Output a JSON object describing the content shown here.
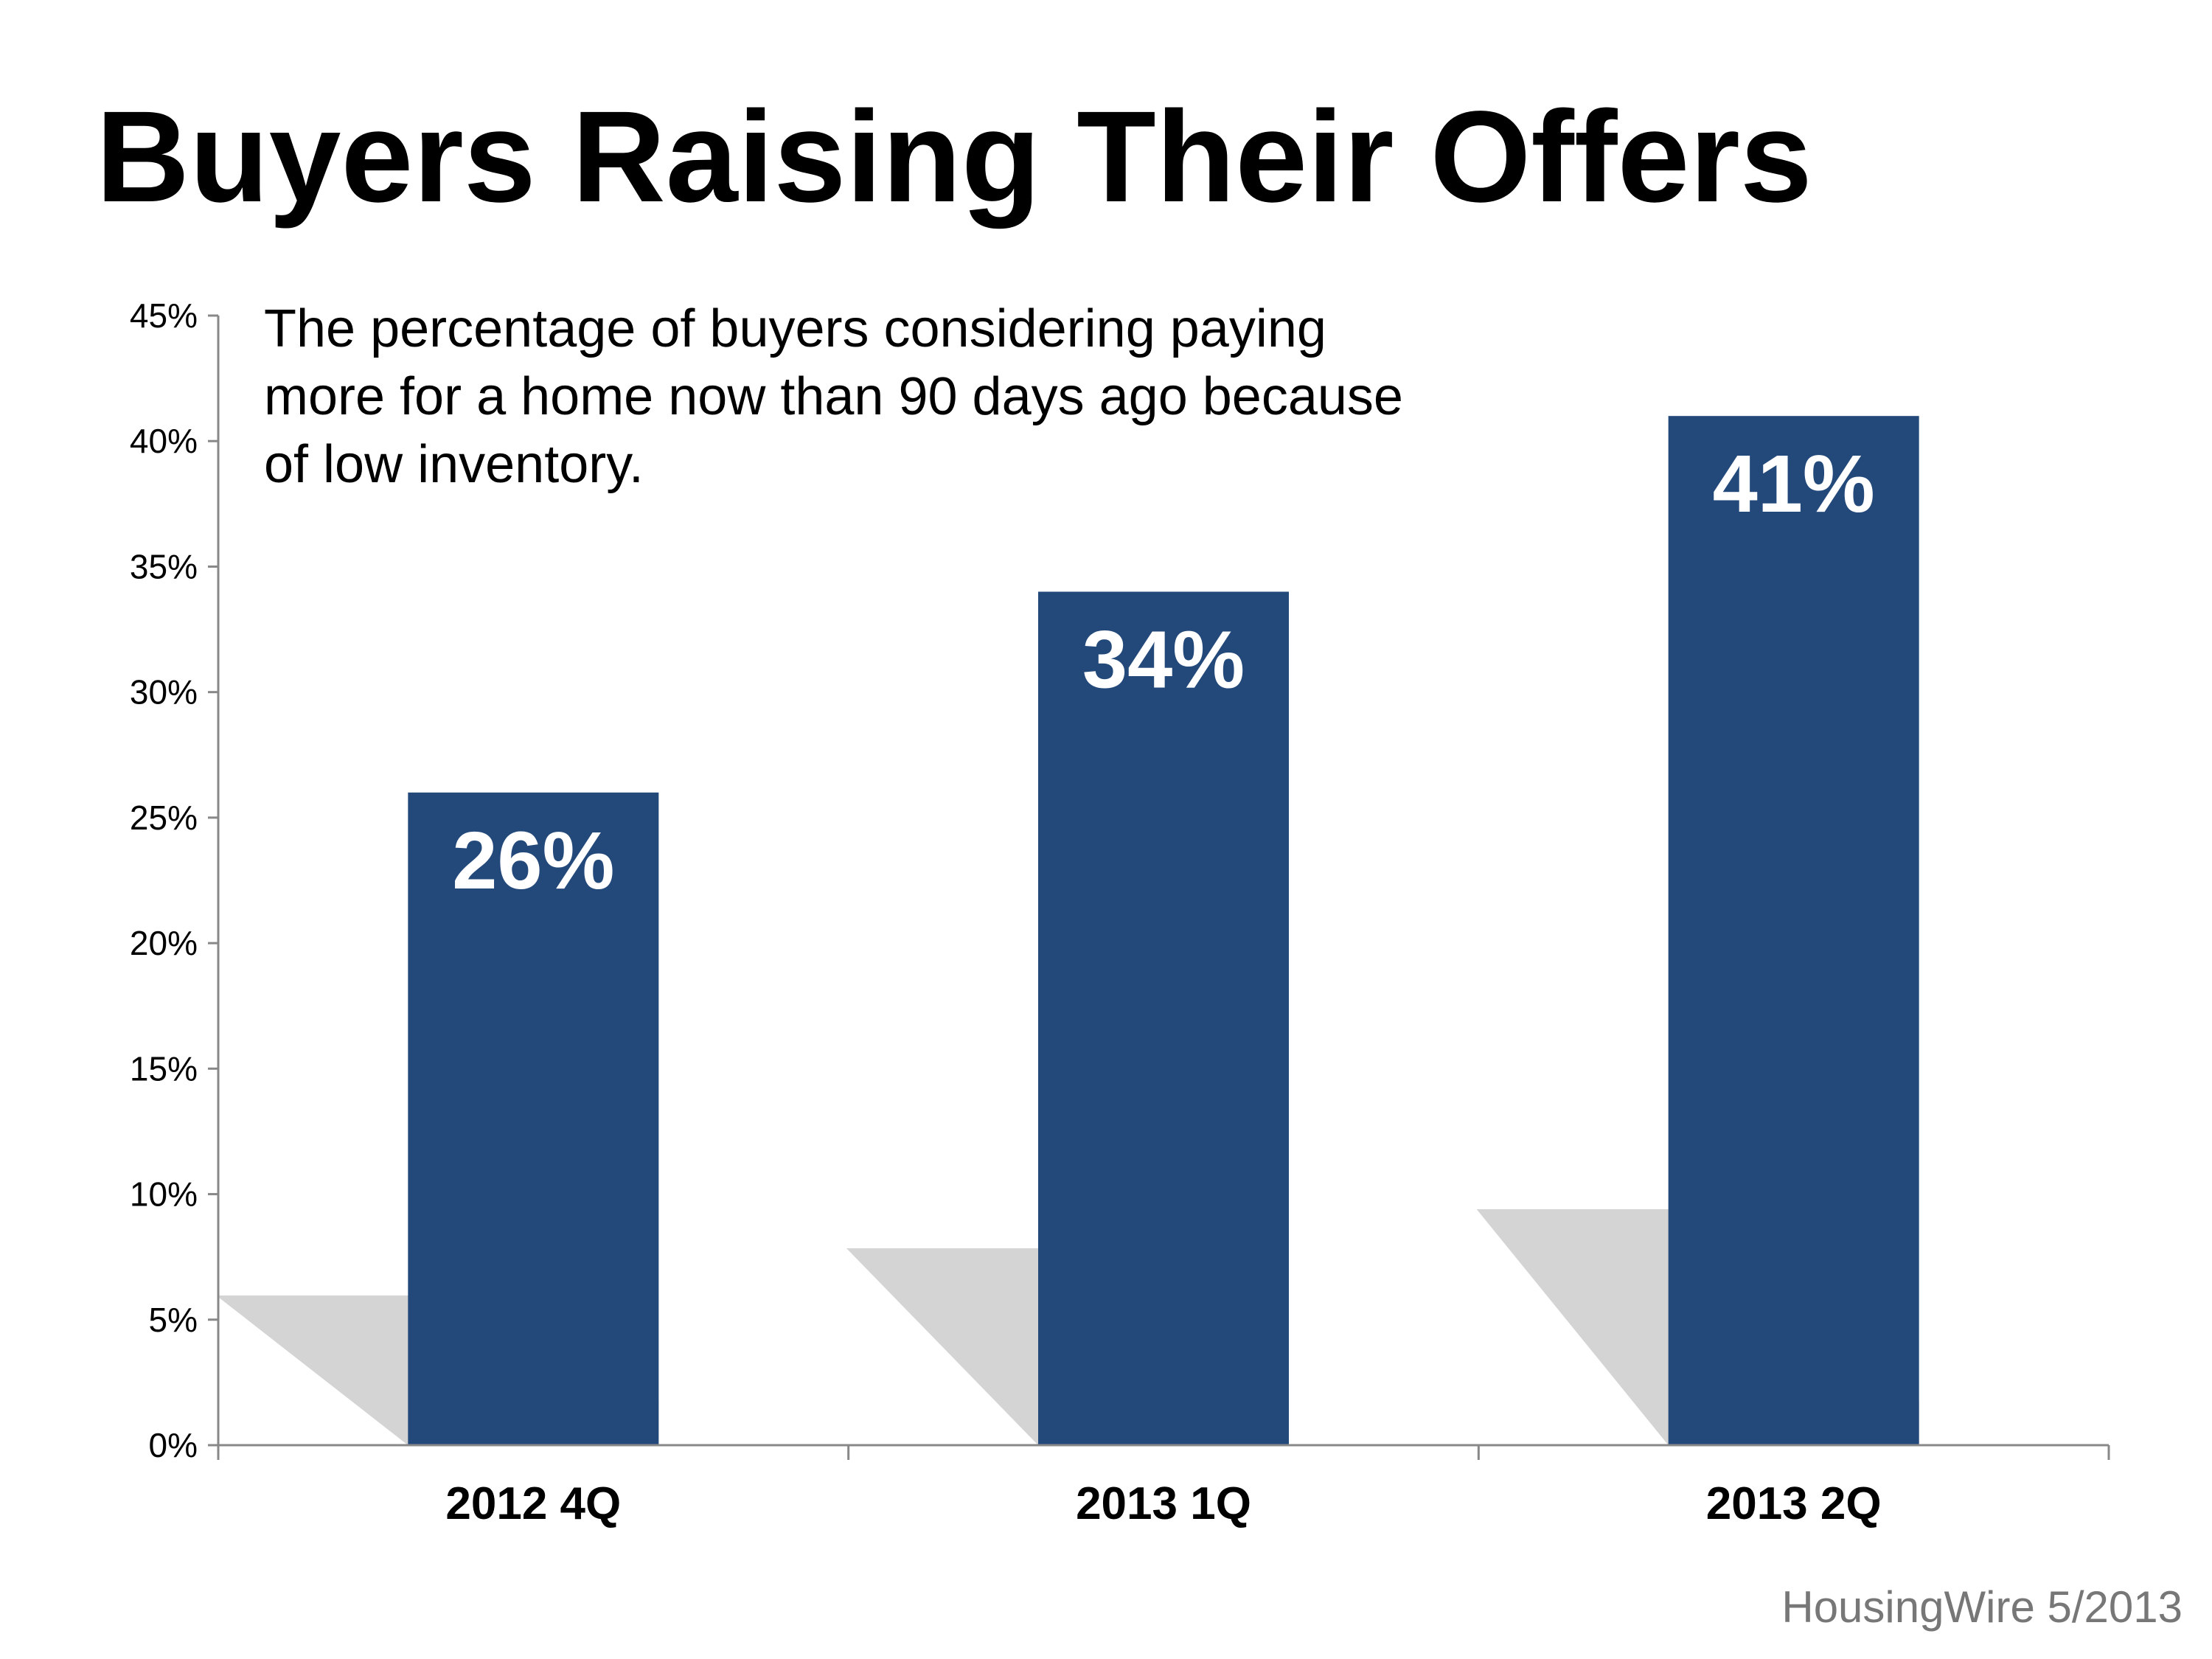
{
  "title": "Buyers Raising Their Offers",
  "subtitle": "The percentage of buyers considering paying more for a home now than 90 days ago because of low inventory.",
  "source": "HousingWire 5/2013",
  "colors": {
    "bar": "#23497b",
    "shadow": "#cccccc",
    "axis": "#888888",
    "source_text": "#777777"
  },
  "chart_data": {
    "type": "bar",
    "title": "Buyers Raising Their Offers",
    "categories": [
      "2012 4Q",
      "2013 1Q",
      "2013 2Q"
    ],
    "values": [
      26,
      34,
      41
    ],
    "data_labels": [
      "26%",
      "34%",
      "41%"
    ],
    "ylim": [
      0,
      45
    ],
    "yticks": [
      0,
      5,
      10,
      15,
      20,
      25,
      30,
      35,
      40,
      45
    ],
    "ytick_labels": [
      "0%",
      "5%",
      "10%",
      "15%",
      "20%",
      "25%",
      "30%",
      "35%",
      "40%",
      "45%"
    ],
    "xlabel": "",
    "ylabel": "",
    "grid": false,
    "legend": "none"
  }
}
